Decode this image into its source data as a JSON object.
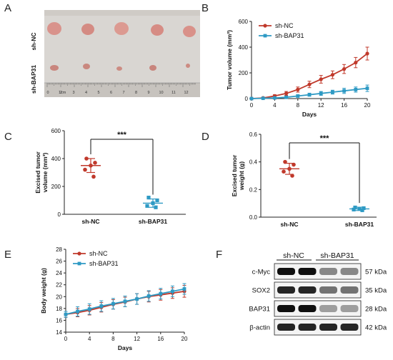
{
  "panels": {
    "a": {
      "letter": "A",
      "row_labels": [
        "sh-NC",
        "sh-BAP31"
      ],
      "ruler_unit": "1cm",
      "ruler_ticks": [
        "0",
        "2",
        "3",
        "4",
        "5",
        "6",
        "7",
        "8",
        "9",
        "10",
        "11",
        "12"
      ]
    },
    "b": {
      "letter": "B"
    },
    "c": {
      "letter": "C"
    },
    "d": {
      "letter": "D"
    },
    "e": {
      "letter": "E"
    },
    "f": {
      "letter": "F",
      "column_labels": [
        "sh-NC",
        "sh-BAP31"
      ],
      "rows": [
        {
          "protein": "c-Myc",
          "kda": "57 kDa",
          "intensity": [
            1.0,
            1.0,
            0.45,
            0.45
          ]
        },
        {
          "protein": "SOX2",
          "kda": "35 kDa",
          "intensity": [
            0.9,
            0.9,
            0.55,
            0.55
          ]
        },
        {
          "protein": "BAP31",
          "kda": "28 kDa",
          "intensity": [
            1.0,
            1.0,
            0.35,
            0.35
          ]
        },
        {
          "protein": "β-actin",
          "kda": "42 kDa",
          "intensity": [
            0.9,
            0.9,
            0.9,
            0.9
          ]
        }
      ]
    }
  },
  "colors": {
    "nc": "#c0392b",
    "bap": "#2e9ac4"
  },
  "chart_data": [
    {
      "id": "B",
      "type": "line",
      "xlabel": "Days",
      "ylabel": "Tumor volume (mm³)",
      "xticks": [
        0,
        4,
        8,
        12,
        16,
        20
      ],
      "yticks": [
        0,
        200,
        400,
        600
      ],
      "xlim": [
        0,
        20
      ],
      "ylim": [
        0,
        600
      ],
      "legend_position": "top-left",
      "series": [
        {
          "name": "sh-NC",
          "x": [
            0,
            2,
            4,
            6,
            8,
            10,
            12,
            14,
            16,
            18,
            20
          ],
          "y": [
            0,
            5,
            20,
            40,
            70,
            110,
            150,
            185,
            230,
            280,
            350
          ],
          "err": [
            0,
            5,
            10,
            15,
            20,
            25,
            30,
            30,
            35,
            40,
            50
          ]
        },
        {
          "name": "sh-BAP31",
          "x": [
            0,
            2,
            4,
            6,
            8,
            10,
            12,
            14,
            16,
            18,
            20
          ],
          "y": [
            0,
            2,
            5,
            10,
            20,
            30,
            40,
            50,
            60,
            70,
            80
          ],
          "err": [
            0,
            2,
            4,
            8,
            10,
            12,
            15,
            15,
            20,
            20,
            25
          ]
        }
      ]
    },
    {
      "id": "C",
      "type": "scatter",
      "ylabel": "Excised tumor volume (mm³)",
      "categories": [
        "sh-NC",
        "sh-BAP31"
      ],
      "yticks": [
        0,
        200,
        400,
        600
      ],
      "ylim": [
        0,
        600
      ],
      "points": [
        [
          400,
          370,
          350,
          320,
          270
        ],
        [
          120,
          100,
          80,
          60,
          50
        ]
      ],
      "mean": [
        350,
        80
      ],
      "sd": [
        50,
        30
      ],
      "significance": "***"
    },
    {
      "id": "D",
      "type": "scatter",
      "ylabel": "Excised tumor weight (g)",
      "categories": [
        "sh-NC",
        "sh-BAP31"
      ],
      "yticks": [
        0.0,
        0.2,
        0.4,
        0.6
      ],
      "ylim": [
        0,
        0.6
      ],
      "points": [
        [
          0.4,
          0.38,
          0.35,
          0.33,
          0.3
        ],
        [
          0.07,
          0.065,
          0.06,
          0.055,
          0.05
        ]
      ],
      "mean": [
        0.35,
        0.06
      ],
      "sd": [
        0.04,
        0.012
      ],
      "significance": "***"
    },
    {
      "id": "E",
      "type": "line",
      "xlabel": "Days",
      "ylabel": "Body weight (g)",
      "xticks": [
        0,
        4,
        8,
        12,
        16,
        20
      ],
      "yticks": [
        14,
        16,
        18,
        20,
        22,
        24,
        26,
        28
      ],
      "xlim": [
        0,
        20
      ],
      "ylim": [
        14,
        28
      ],
      "legend_position": "top-left",
      "series": [
        {
          "name": "sh-NC",
          "x": [
            0,
            2,
            4,
            6,
            8,
            10,
            12,
            14,
            16,
            18,
            20
          ],
          "y": [
            17.0,
            17.3,
            17.7,
            18.2,
            18.7,
            19.1,
            19.6,
            20.0,
            20.3,
            20.6,
            20.9
          ],
          "err": [
            0.5,
            0.7,
            0.8,
            0.8,
            0.8,
            0.8,
            0.9,
            0.9,
            0.9,
            0.9,
            1.0
          ]
        },
        {
          "name": "sh-BAP31",
          "x": [
            0,
            2,
            4,
            6,
            8,
            10,
            12,
            14,
            16,
            18,
            20
          ],
          "y": [
            17.0,
            17.5,
            17.9,
            18.4,
            18.8,
            19.2,
            19.6,
            20.1,
            20.5,
            20.9,
            21.3
          ],
          "err": [
            0.5,
            0.8,
            0.9,
            0.9,
            0.9,
            0.9,
            0.9,
            0.9,
            0.9,
            0.9,
            0.9
          ]
        }
      ]
    }
  ]
}
